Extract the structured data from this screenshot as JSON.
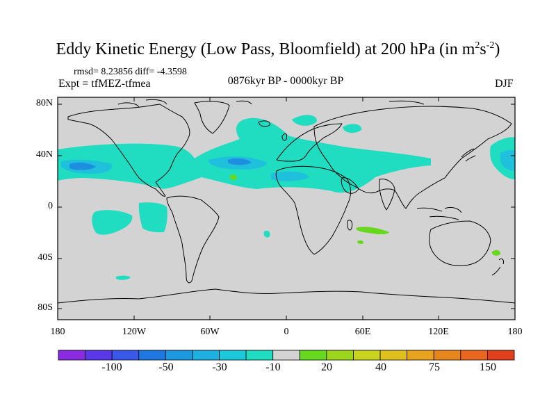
{
  "title": {
    "main": "Eddy Kinetic Energy (Low Pass, Bloomfield) at 200 hPa (in m",
    "sup1": "2",
    "mid": "s",
    "sup2": "-2",
    "close": ")"
  },
  "stats": "rmsd= 8.23856 diff= -4.3598",
  "experiment": "Expt = tfMEZ-tfmea",
  "period": "0876kyr BP - 0000kyr BP",
  "season": "DJF",
  "axes": {
    "y_ticks": [
      "80N",
      "40N",
      "0",
      "40S",
      "80S"
    ],
    "x_ticks": [
      "180",
      "120W",
      "60W",
      "0",
      "60E",
      "120E",
      "180"
    ]
  },
  "colors": {
    "land_neutral": "#d3d3d3",
    "light_negative": "#20dcc0",
    "moderate_negative": "#1ec0dc",
    "strong_negative": "#1e8fe0",
    "positive": "#66d91f",
    "coastline": "#000000"
  },
  "colorbar": {
    "colors": [
      "#8a2be2",
      "#5a38e8",
      "#3a58e8",
      "#1e78e0",
      "#1e98e0",
      "#1eb0e0",
      "#1ec8dc",
      "#20dcc0",
      "#d3d3d3",
      "#66d91f",
      "#9ed61f",
      "#c8d41f",
      "#e0c01e",
      "#e8a41e",
      "#e8861e",
      "#e8661e",
      "#e0401e"
    ],
    "labels": [
      "-100",
      "-50",
      "-30",
      "-10",
      "20",
      "40",
      "75",
      "150"
    ]
  }
}
